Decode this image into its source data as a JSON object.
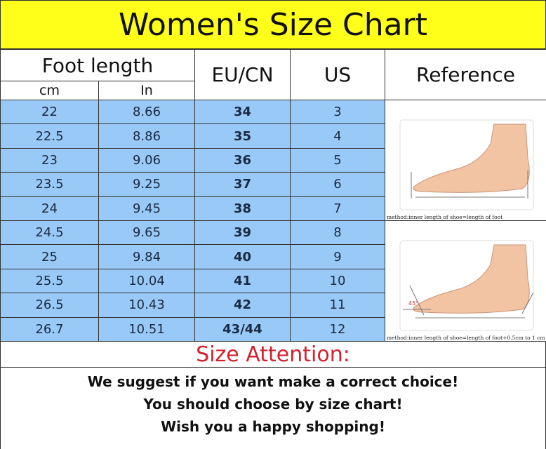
{
  "title": "Women's Size Chart",
  "headers": {
    "foot_length": "Foot length",
    "cm": "cm",
    "in": "In",
    "eu_cn": "EU/CN",
    "us": "US",
    "reference": "Reference"
  },
  "rows": [
    {
      "cm": "22",
      "in": "8.66",
      "eu": "34",
      "us": "3"
    },
    {
      "cm": "22.5",
      "in": "8.86",
      "eu": "35",
      "us": "4"
    },
    {
      "cm": "23",
      "in": "9.06",
      "eu": "36",
      "us": "5"
    },
    {
      "cm": "23.5",
      "in": "9.25",
      "eu": "37",
      "us": "6"
    },
    {
      "cm": "24",
      "in": "9.45",
      "eu": "38",
      "us": "7"
    },
    {
      "cm": "24.5",
      "in": "9.65",
      "eu": "39",
      "us": "8"
    },
    {
      "cm": "25",
      "in": "9.84",
      "eu": "40",
      "us": "9"
    },
    {
      "cm": "25.5",
      "in": "10.04",
      "eu": "41",
      "us": "10"
    },
    {
      "cm": "26.5",
      "in": "10.43",
      "eu": "42",
      "us": "11"
    },
    {
      "cm": "26.7",
      "in": "10.51",
      "eu": "43/44",
      "us": "12"
    }
  ],
  "reference": {
    "caption1": "method:inner length of shoe=length of foot",
    "caption2": "method:inner length of shoe=length of foot+0.5cm to 1 cm",
    "angle": "45°"
  },
  "attention": {
    "title": "Size Attention:",
    "lines": [
      "We suggest if you want make a correct choice!",
      "You should choose by size chart!",
      "Wish you a happy shopping!"
    ]
  },
  "colors": {
    "title_bg": "#ffff1a",
    "row_bg": "#99c9f6",
    "eu_text": "#d2222e"
  }
}
